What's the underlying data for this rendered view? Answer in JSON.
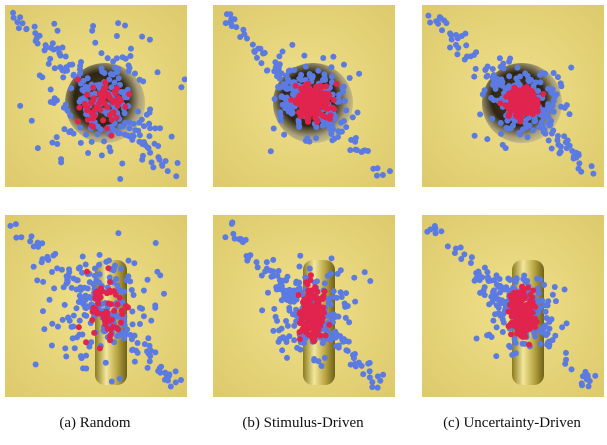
{
  "figure": {
    "captions": [
      "(a)  Random",
      "(b)  Stimulus-Driven",
      "(c)  Uncertainty-Driven"
    ]
  }
}
